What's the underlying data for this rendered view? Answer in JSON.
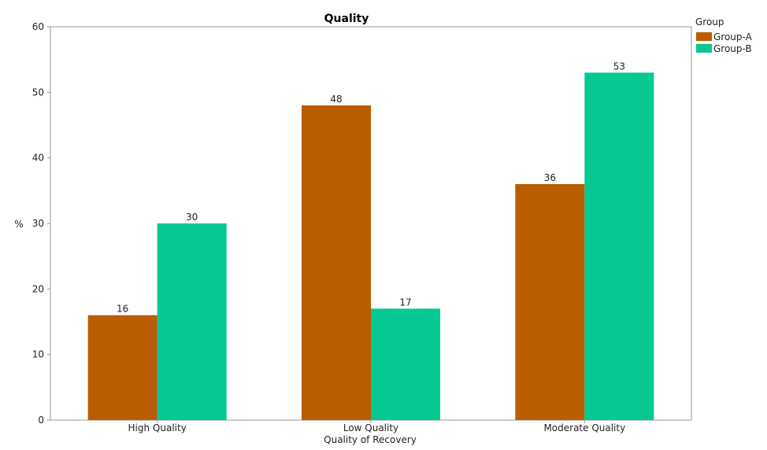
{
  "chart_data": {
    "type": "bar",
    "title": "Quality",
    "xlabel": "Quality of Recovery",
    "ylabel": "%",
    "categories": [
      "High Quality",
      "Low Quality",
      "Moderate Quality"
    ],
    "series": [
      {
        "name": "Group-A",
        "values": [
          16,
          48,
          36
        ],
        "color": "#BA5C02"
      },
      {
        "name": "Group-B",
        "values": [
          30,
          17,
          53
        ],
        "color": "#05C893"
      }
    ],
    "ylim": [
      0,
      60
    ],
    "yticks": [
      0,
      10,
      20,
      30,
      40,
      50,
      60
    ],
    "grid": false,
    "legend": {
      "title": "Group",
      "placement": "top-right"
    }
  }
}
